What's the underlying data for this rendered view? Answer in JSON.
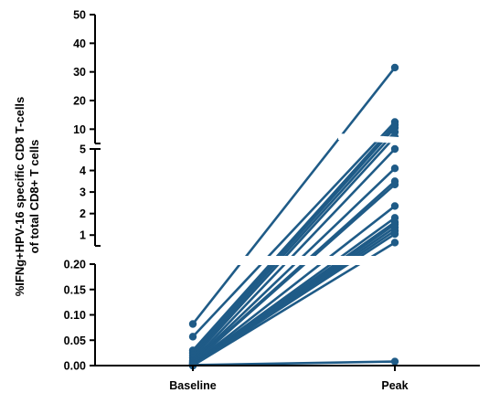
{
  "chart_data": {
    "type": "line",
    "chart_kind": "paired before-after dot plot",
    "xlabel": "",
    "ylabel_lines": [
      "%IFNg+HPV-16 specific CD8 T-cells",
      "of total CD8+ T cells"
    ],
    "categories": [
      "Baseline",
      "Peak"
    ],
    "y_axis": {
      "scale": "segmented (three linear segments with axis breaks)",
      "segments": [
        {
          "ylim": [
            0,
            0.2
          ],
          "ticks": [
            "0.00",
            "0.05",
            "0.10",
            "0.15",
            "0.20"
          ]
        },
        {
          "ylim": [
            0.5,
            5
          ],
          "ticks": [
            "1",
            "2",
            "3",
            "4",
            "5"
          ]
        },
        {
          "ylim": [
            5,
            50
          ],
          "ticks": [
            "10",
            "20",
            "30",
            "40",
            "50"
          ]
        }
      ]
    },
    "grid": false,
    "legend": "none",
    "colors": {
      "series": "#1f5b87",
      "axis": "#000000"
    },
    "pairs": [
      {
        "baseline": 0.082,
        "peak": 31.5
      },
      {
        "baseline": 0.057,
        "peak": 12.5
      },
      {
        "baseline": 0.03,
        "peak": 11.5
      },
      {
        "baseline": 0.025,
        "peak": 10.5
      },
      {
        "baseline": 0.02,
        "peak": 9.0
      },
      {
        "baseline": 0.015,
        "peak": 7.3
      },
      {
        "baseline": 0.01,
        "peak": 5.0
      },
      {
        "baseline": 0.008,
        "peak": 4.1
      },
      {
        "baseline": 0.006,
        "peak": 3.5
      },
      {
        "baseline": 0.005,
        "peak": 3.35
      },
      {
        "baseline": 0.004,
        "peak": 2.35
      },
      {
        "baseline": 0.003,
        "peak": 1.8
      },
      {
        "baseline": 0.002,
        "peak": 1.6
      },
      {
        "baseline": 0.001,
        "peak": 1.5
      },
      {
        "baseline": 0.0,
        "peak": 1.35
      },
      {
        "baseline": 0.0,
        "peak": 1.2
      },
      {
        "baseline": 0.0,
        "peak": 1.05
      },
      {
        "baseline": 0.0,
        "peak": 0.65
      },
      {
        "baseline": 0.001,
        "peak": 0.008
      }
    ]
  }
}
